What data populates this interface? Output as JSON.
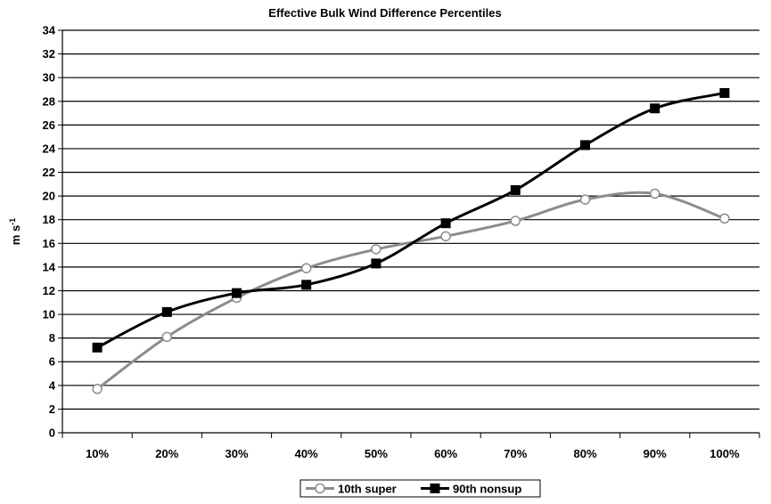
{
  "chart_data": {
    "type": "line",
    "title": "Effective Bulk Wind Difference Percentiles",
    "ylabel_base": "m s",
    "ylabel_sup": "-1",
    "xlabel": "",
    "categories": [
      "10%",
      "20%",
      "30%",
      "40%",
      "50%",
      "60%",
      "70%",
      "80%",
      "90%",
      "100%"
    ],
    "ylim": [
      0,
      34
    ],
    "ytick_step": 2,
    "grid": true,
    "legend_position": "bottom",
    "series": [
      {
        "name": "10th super",
        "color": "#8c8c8c",
        "marker": "open-circle",
        "values": [
          3.7,
          8.1,
          11.4,
          13.9,
          15.5,
          16.6,
          17.9,
          19.7,
          20.2,
          18.1
        ]
      },
      {
        "name": "90th nonsup",
        "color": "#000000",
        "marker": "filled-square",
        "values": [
          7.2,
          10.2,
          11.8,
          12.5,
          14.3,
          17.7,
          20.5,
          24.3,
          27.4,
          28.7
        ]
      }
    ]
  }
}
